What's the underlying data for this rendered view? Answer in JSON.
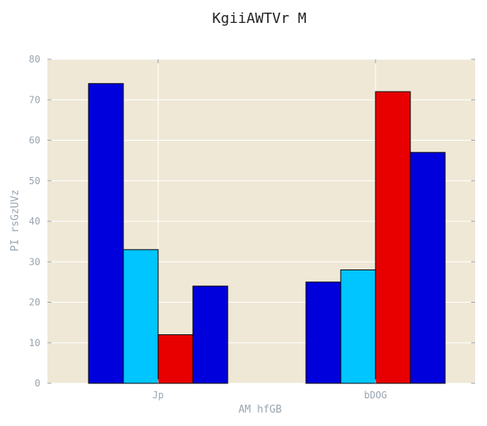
{
  "chart_data": {
    "type": "bar",
    "title": "KgiiAWTVr M",
    "xlabel": "AM hfGB",
    "ylabel": "PI rsGzUVz",
    "categories": [
      "Jp",
      "bDOG"
    ],
    "series": [
      {
        "values": [
          74,
          25
        ],
        "color": "#0000dd"
      },
      {
        "values": [
          33,
          28
        ],
        "color": "#00c5ff"
      },
      {
        "values": [
          12,
          72
        ],
        "color": "#e80000"
      },
      {
        "values": [
          24,
          57
        ],
        "color": "#0000dd"
      }
    ],
    "ylim": [
      0,
      80
    ],
    "yticks": [
      0,
      10,
      20,
      30,
      40,
      50,
      60,
      70,
      80
    ],
    "grid": true,
    "legend": "none",
    "background_color": "#efe8d6",
    "grid_color": "#ffffff",
    "bar_edge_color": "#000000"
  }
}
